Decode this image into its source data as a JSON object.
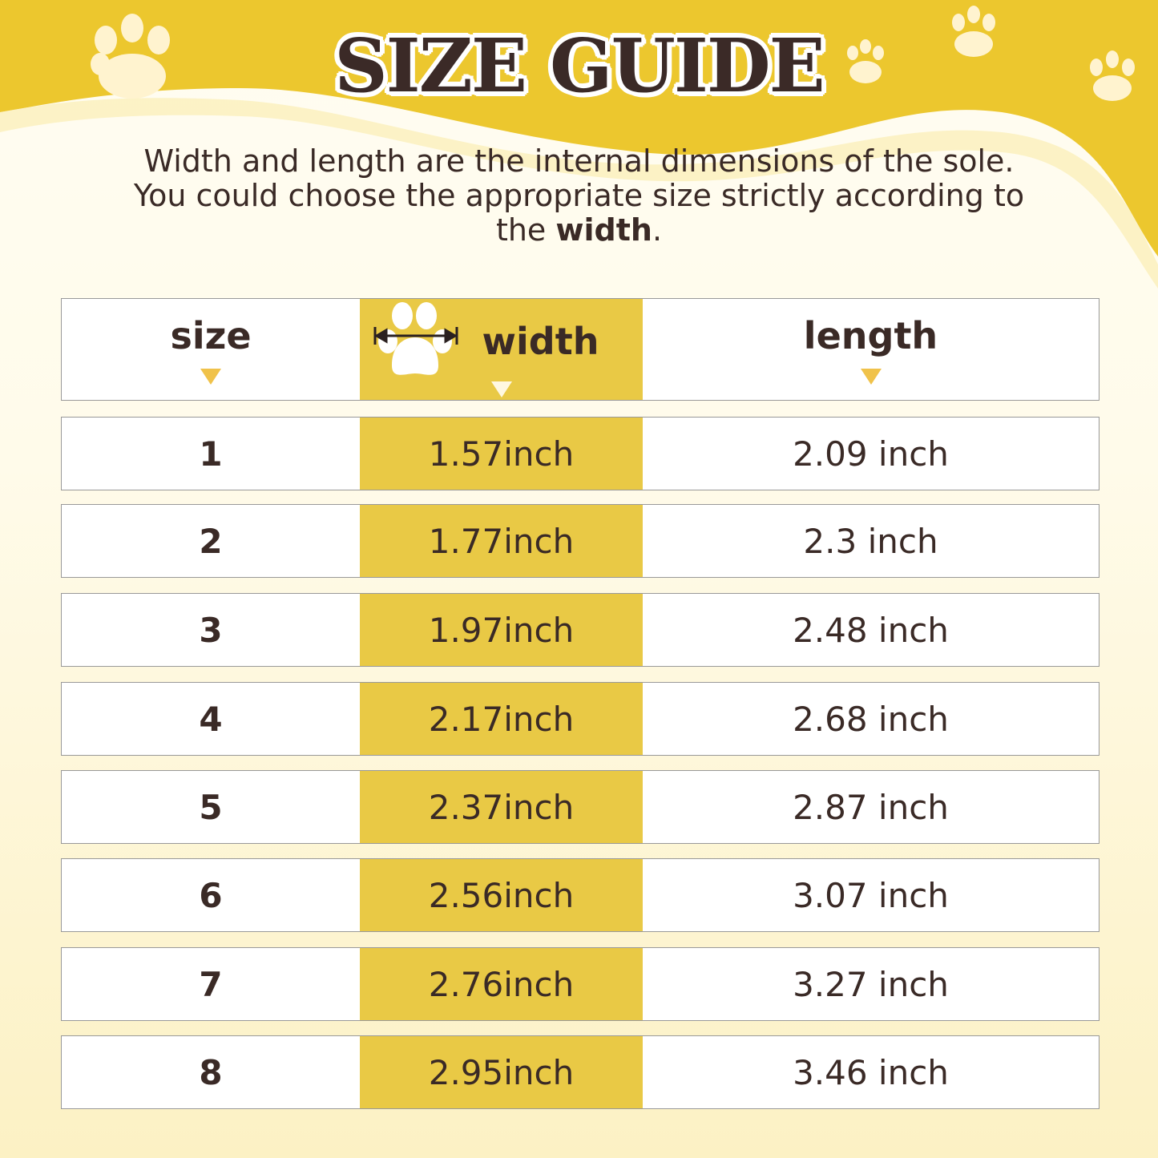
{
  "title": "SIZE GUIDE",
  "description": {
    "text": "Width and length are the internal dimensions of the sole. You could choose the appropriate size strictly according to the",
    "bold": "width",
    "end": "."
  },
  "colors": {
    "accent_yellow": "#e9c945",
    "text_dark": "#3a2a26",
    "header_yellow": "#ecc72e"
  },
  "table": {
    "headers": {
      "size": "size",
      "width": "width",
      "length": "length"
    },
    "rows": [
      {
        "size": "1",
        "width": "1.57inch",
        "length": "2.09 inch"
      },
      {
        "size": "2",
        "width": "1.77inch",
        "length": "2.3 inch"
      },
      {
        "size": "3",
        "width": "1.97inch",
        "length": "2.48 inch"
      },
      {
        "size": "4",
        "width": "2.17inch",
        "length": "2.68 inch"
      },
      {
        "size": "5",
        "width": "2.37inch",
        "length": "2.87 inch"
      },
      {
        "size": "6",
        "width": "2.56inch",
        "length": "3.07 inch"
      },
      {
        "size": "7",
        "width": "2.76inch",
        "length": "3.27 inch"
      },
      {
        "size": "8",
        "width": "2.95inch",
        "length": "3.46 inch"
      }
    ]
  }
}
